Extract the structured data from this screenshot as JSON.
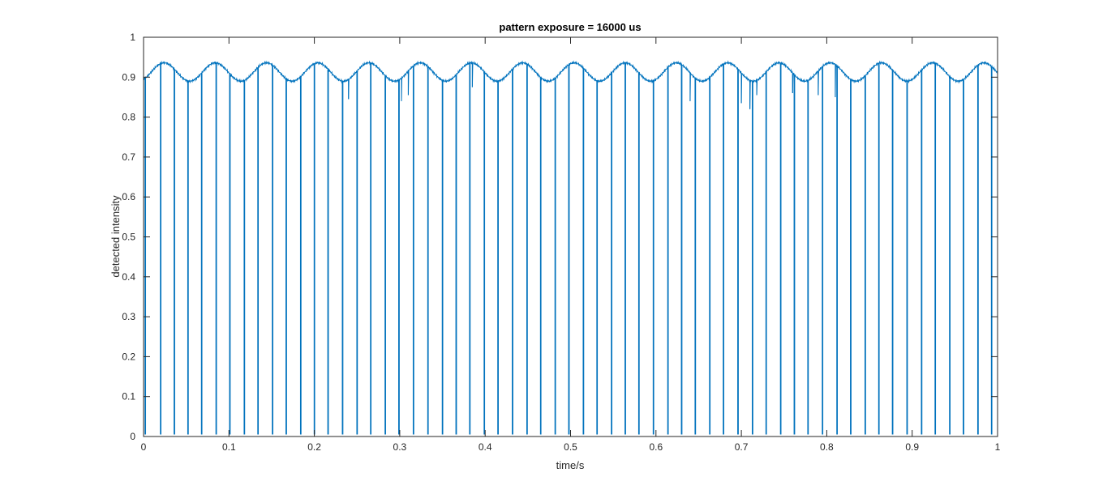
{
  "chart_data": {
    "type": "line",
    "title": "pattern exposure = 16000 us",
    "xlabel": "time/s",
    "ylabel": "detected intensity",
    "xlim": [
      0,
      1
    ],
    "ylim": [
      0,
      1
    ],
    "xticks": [
      0,
      0.1,
      0.2,
      0.3,
      0.4,
      0.5,
      0.6,
      0.7,
      0.8,
      0.9,
      1
    ],
    "xtick_labels": [
      "0",
      "0.1",
      "0.2",
      "0.3",
      "0.4",
      "0.5",
      "0.6",
      "0.7",
      "0.8",
      "0.9",
      "1"
    ],
    "yticks": [
      0,
      0.1,
      0.2,
      0.3,
      0.4,
      0.5,
      0.6,
      0.7,
      0.8,
      0.9,
      1
    ],
    "ytick_labels": [
      "0",
      "0.1",
      "0.2",
      "0.3",
      "0.4",
      "0.5",
      "0.6",
      "0.7",
      "0.8",
      "0.9",
      "1"
    ],
    "grid": false,
    "legend": "none",
    "series_color": "#0072BD",
    "baseline": {
      "mean": 0.913,
      "amplitude": 0.023,
      "period_s": 0.06,
      "min_at_s": [
        0.005,
        0.053,
        0.113,
        0.173,
        0.233,
        0.293,
        0.353,
        0.413,
        0.473,
        0.533,
        0.593,
        0.653,
        0.713,
        0.773,
        0.833,
        0.893,
        0.953
      ],
      "max_at_s": [
        0.024,
        0.084,
        0.144,
        0.204,
        0.264,
        0.324,
        0.384,
        0.444,
        0.504,
        0.564,
        0.624,
        0.684,
        0.744,
        0.804,
        0.864,
        0.924,
        0.984
      ]
    },
    "dips": {
      "min_value": 0.005,
      "times_s": [
        0.002,
        0.02,
        0.036,
        0.052,
        0.068,
        0.085,
        0.101,
        0.118,
        0.134,
        0.151,
        0.167,
        0.184,
        0.2,
        0.216,
        0.233,
        0.25,
        0.266,
        0.283,
        0.299,
        0.316,
        0.333,
        0.35,
        0.366,
        0.382,
        0.399,
        0.415,
        0.432,
        0.449,
        0.465,
        0.482,
        0.498,
        0.515,
        0.531,
        0.548,
        0.564,
        0.58,
        0.597,
        0.614,
        0.63,
        0.646,
        0.663,
        0.679,
        0.696,
        0.713,
        0.729,
        0.746,
        0.762,
        0.778,
        0.795,
        0.812,
        0.828,
        0.845,
        0.861,
        0.877,
        0.894,
        0.911,
        0.927,
        0.944,
        0.96,
        0.977,
        0.993
      ]
    },
    "spikes": [
      {
        "t": 0.24,
        "value": 0.845
      },
      {
        "t": 0.302,
        "value": 0.84
      },
      {
        "t": 0.31,
        "value": 0.855
      },
      {
        "t": 0.333,
        "value": 0.86
      },
      {
        "t": 0.385,
        "value": 0.875
      },
      {
        "t": 0.482,
        "value": 0.87
      },
      {
        "t": 0.64,
        "value": 0.84
      },
      {
        "t": 0.7,
        "value": 0.835
      },
      {
        "t": 0.71,
        "value": 0.82
      },
      {
        "t": 0.718,
        "value": 0.855
      },
      {
        "t": 0.76,
        "value": 0.86
      },
      {
        "t": 0.79,
        "value": 0.855
      },
      {
        "t": 0.81,
        "value": 0.85
      }
    ]
  }
}
